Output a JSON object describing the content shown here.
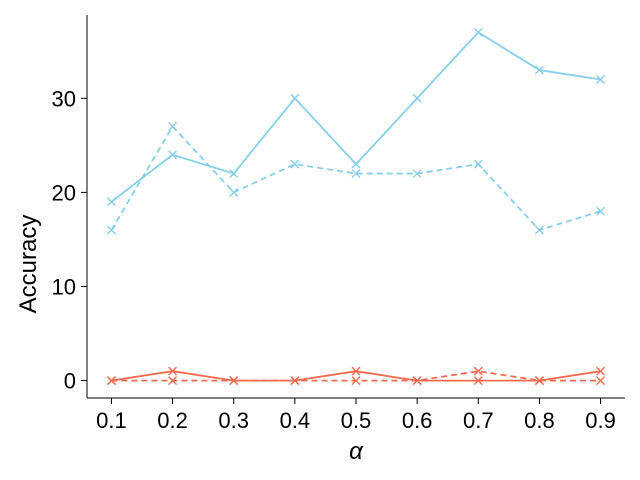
{
  "chart_data": {
    "type": "line",
    "title": "",
    "xlabel": "α",
    "ylabel": "Accuracy",
    "x": [
      0.1,
      0.2,
      0.3,
      0.4,
      0.5,
      0.6,
      0.7,
      0.8,
      0.9
    ],
    "xticks": [
      "0.1",
      "0.2",
      "0.3",
      "0.4",
      "0.5",
      "0.6",
      "0.7",
      "0.8",
      "0.9"
    ],
    "yticks": [
      0,
      10,
      20,
      30
    ],
    "xlim": [
      0.06,
      0.94
    ],
    "ylim": [
      -1.85,
      38.85
    ],
    "grid": false,
    "legend": "none",
    "series": [
      {
        "values": [
          19,
          24,
          22,
          30,
          23,
          30,
          37,
          33,
          32
        ],
        "color": "#87CEEB",
        "dash": "solid",
        "marker": "x"
      },
      {
        "values": [
          16,
          27,
          20,
          23,
          22,
          22,
          23,
          16,
          18
        ],
        "color": "#87CEEB",
        "dash": "dashed",
        "marker": "x"
      },
      {
        "values": [
          0,
          1,
          0,
          0,
          1,
          0,
          0,
          0,
          1
        ],
        "color": "#F26B50",
        "dash": "solid",
        "marker": "x"
      },
      {
        "values": [
          0,
          0,
          0,
          0,
          0,
          0,
          1,
          0,
          0
        ],
        "color": "#F26B50",
        "dash": "dashed",
        "marker": "x"
      }
    ]
  }
}
